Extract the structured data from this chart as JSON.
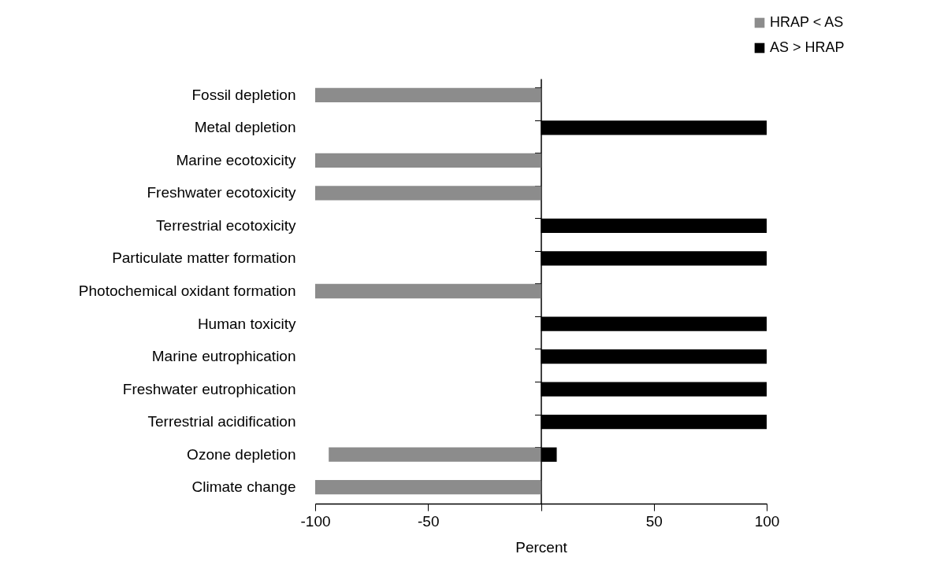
{
  "chart_data": {
    "type": "bar",
    "orientation": "horizontal",
    "xlabel": "Percent",
    "categories": [
      "Fossil depletion",
      "Metal depletion",
      "Marine ecotoxicity",
      "Freshwater ecotoxicity",
      "Terrestrial ecotoxicity",
      "Particulate matter formation",
      "Photochemical oxidant formation",
      "Human toxicity",
      "Marine eutrophication",
      "Freshwater eutrophication",
      "Terrestrial acidification",
      "Ozone depletion",
      "Climate change"
    ],
    "series": [
      {
        "name": "HRAP < AS",
        "color": "#8c8c8c",
        "values": [
          -100,
          null,
          -100,
          -100,
          null,
          null,
          -100,
          null,
          null,
          null,
          null,
          -94,
          -100
        ]
      },
      {
        "name": "AS > HRAP",
        "color": "#000000",
        "values": [
          null,
          100,
          null,
          null,
          100,
          100,
          null,
          100,
          100,
          100,
          100,
          7,
          null
        ]
      }
    ],
    "xlim": [
      -100,
      100
    ],
    "xticks": [
      -100,
      -50,
      {
        "value": 0,
        "label": null
      },
      50,
      100
    ],
    "legend": "top right"
  }
}
